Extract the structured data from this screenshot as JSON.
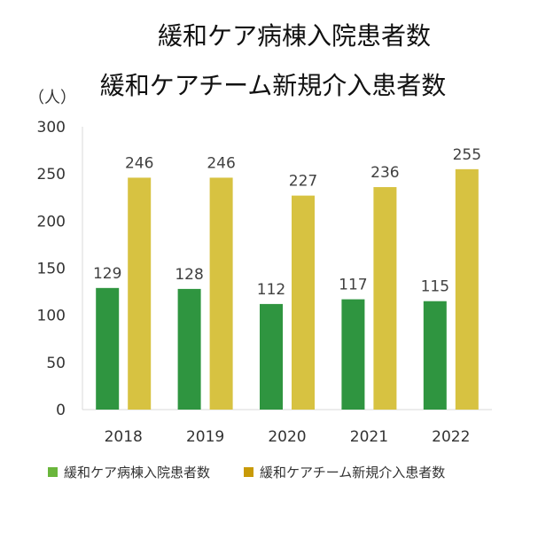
{
  "colors": {
    "series_1_bar": "#2f9540",
    "series_2_bar": "#d7c241",
    "series_1_legend": "#6ab63c",
    "series_2_legend": "#c89a08",
    "axis": "#d9d9d9",
    "text": "#333333"
  },
  "chart_data": {
    "type": "bar",
    "title": "緩和ケア病棟入院患者数",
    "subtitle": "緩和ケアチーム新規介入患者数",
    "ylabel": "（人）",
    "xlabel": "",
    "categories": [
      "2018",
      "2019",
      "2020",
      "2021",
      "2022"
    ],
    "yticks": [
      "0",
      "50",
      "100",
      "150",
      "200",
      "250",
      "300"
    ],
    "ylim": [
      0,
      300
    ],
    "grid": false,
    "legend_position": "bottom",
    "series": [
      {
        "name": "緩和ケア病棟入院患者数",
        "values": [
          129,
          128,
          112,
          117,
          115
        ]
      },
      {
        "name": "緩和ケアチーム新規介入患者数",
        "values": [
          246,
          246,
          227,
          236,
          255
        ]
      }
    ]
  }
}
